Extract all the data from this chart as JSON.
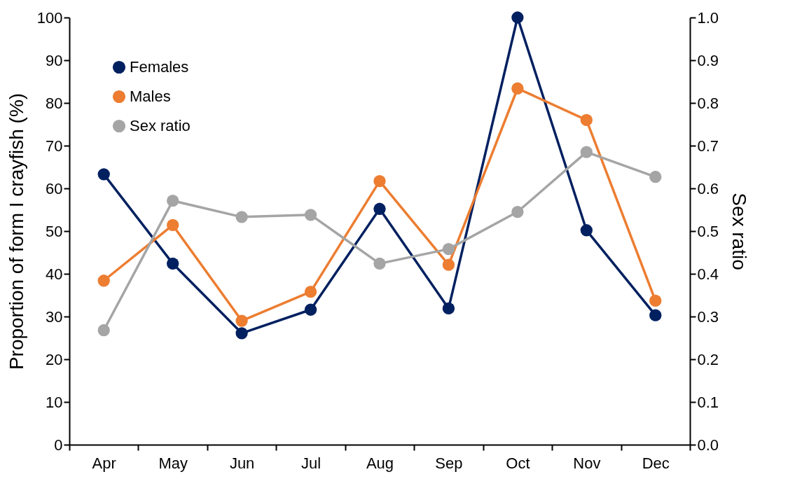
{
  "chart_data": {
    "type": "line",
    "ylabel": "Proportion of form I crayfish (%)",
    "y2label": "Sex ratio",
    "categories": [
      "Apr",
      "May",
      "Jun",
      "Jul",
      "Aug",
      "Sep",
      "Oct",
      "Nov",
      "Dec"
    ],
    "series": [
      {
        "name": "Females",
        "color": "#002060",
        "values": [
          63.3,
          42.4,
          26.1,
          31.6,
          55.2,
          31.9,
          100,
          50.2,
          30.3
        ]
      },
      {
        "name": "Males",
        "color": "#ed7d31",
        "values": [
          38.4,
          51.4,
          29.0,
          35.8,
          61.7,
          42.1,
          83.4,
          76.0,
          33.7
        ]
      },
      {
        "name": "Sex ratio",
        "color": "#a5a5a5",
        "axis": "y2",
        "values": [
          0.268,
          0.571,
          0.533,
          0.538,
          0.424,
          0.458,
          0.545,
          0.685,
          0.627
        ]
      }
    ],
    "ylim": [
      0,
      100
    ],
    "yticks": [
      0,
      10,
      20,
      30,
      40,
      50,
      60,
      70,
      80,
      90,
      100
    ],
    "y2lim": [
      0,
      1
    ],
    "y2ticks": [
      {
        "value": 0,
        "label": "0.0"
      },
      {
        "value": 0.1,
        "label": "0.1"
      },
      {
        "value": 0.2,
        "label": "0.2"
      },
      {
        "value": 0.3,
        "label": "0.3"
      },
      {
        "value": 0.4,
        "label": "0.4"
      },
      {
        "value": 0.5,
        "label": "0.5"
      },
      {
        "value": 0.6,
        "label": "0.6"
      },
      {
        "value": 0.7,
        "label": "0.7"
      },
      {
        "value": 0.8,
        "label": "0.8"
      },
      {
        "value": 0.9,
        "label": "0.9"
      },
      {
        "value": 1,
        "label": "1.0"
      }
    ],
    "grid": false,
    "legend": "top left",
    "marker": "circle",
    "line_style": "solid"
  }
}
